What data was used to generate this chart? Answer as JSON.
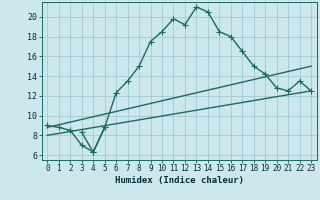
{
  "xlabel": "Humidex (Indice chaleur)",
  "bg_color": "#cde8ec",
  "grid_color": "#aacdd4",
  "line_color": "#1a6b60",
  "xlim": [
    -0.5,
    23.5
  ],
  "ylim": [
    5.5,
    21.5
  ],
  "xticks": [
    0,
    1,
    2,
    3,
    4,
    5,
    6,
    7,
    8,
    9,
    10,
    11,
    12,
    13,
    14,
    15,
    16,
    17,
    18,
    19,
    20,
    21,
    22,
    23
  ],
  "yticks": [
    6,
    8,
    10,
    12,
    14,
    16,
    18,
    20
  ],
  "line1_x": [
    0,
    1,
    2,
    3,
    4,
    5,
    6,
    7,
    8,
    9,
    10,
    11,
    12,
    13,
    14,
    15,
    16,
    17,
    18,
    19,
    20,
    21,
    22,
    23
  ],
  "line1_y": [
    9.0,
    8.8,
    8.5,
    7.0,
    6.3,
    8.8,
    12.3,
    13.5,
    15.0,
    17.5,
    18.5,
    19.8,
    19.2,
    21.0,
    20.5,
    18.5,
    18.0,
    16.5,
    15.0,
    14.2,
    12.8,
    12.5,
    13.5,
    12.5
  ],
  "line2_x": [
    0,
    23
  ],
  "line2_y": [
    8.8,
    15.0
  ],
  "line3_x": [
    0,
    23
  ],
  "line3_y": [
    8.0,
    12.5
  ],
  "line4_x": [
    3,
    4,
    5
  ],
  "line4_y": [
    8.3,
    6.3,
    8.8
  ],
  "marker_size": 2.5,
  "line_width": 1.0
}
